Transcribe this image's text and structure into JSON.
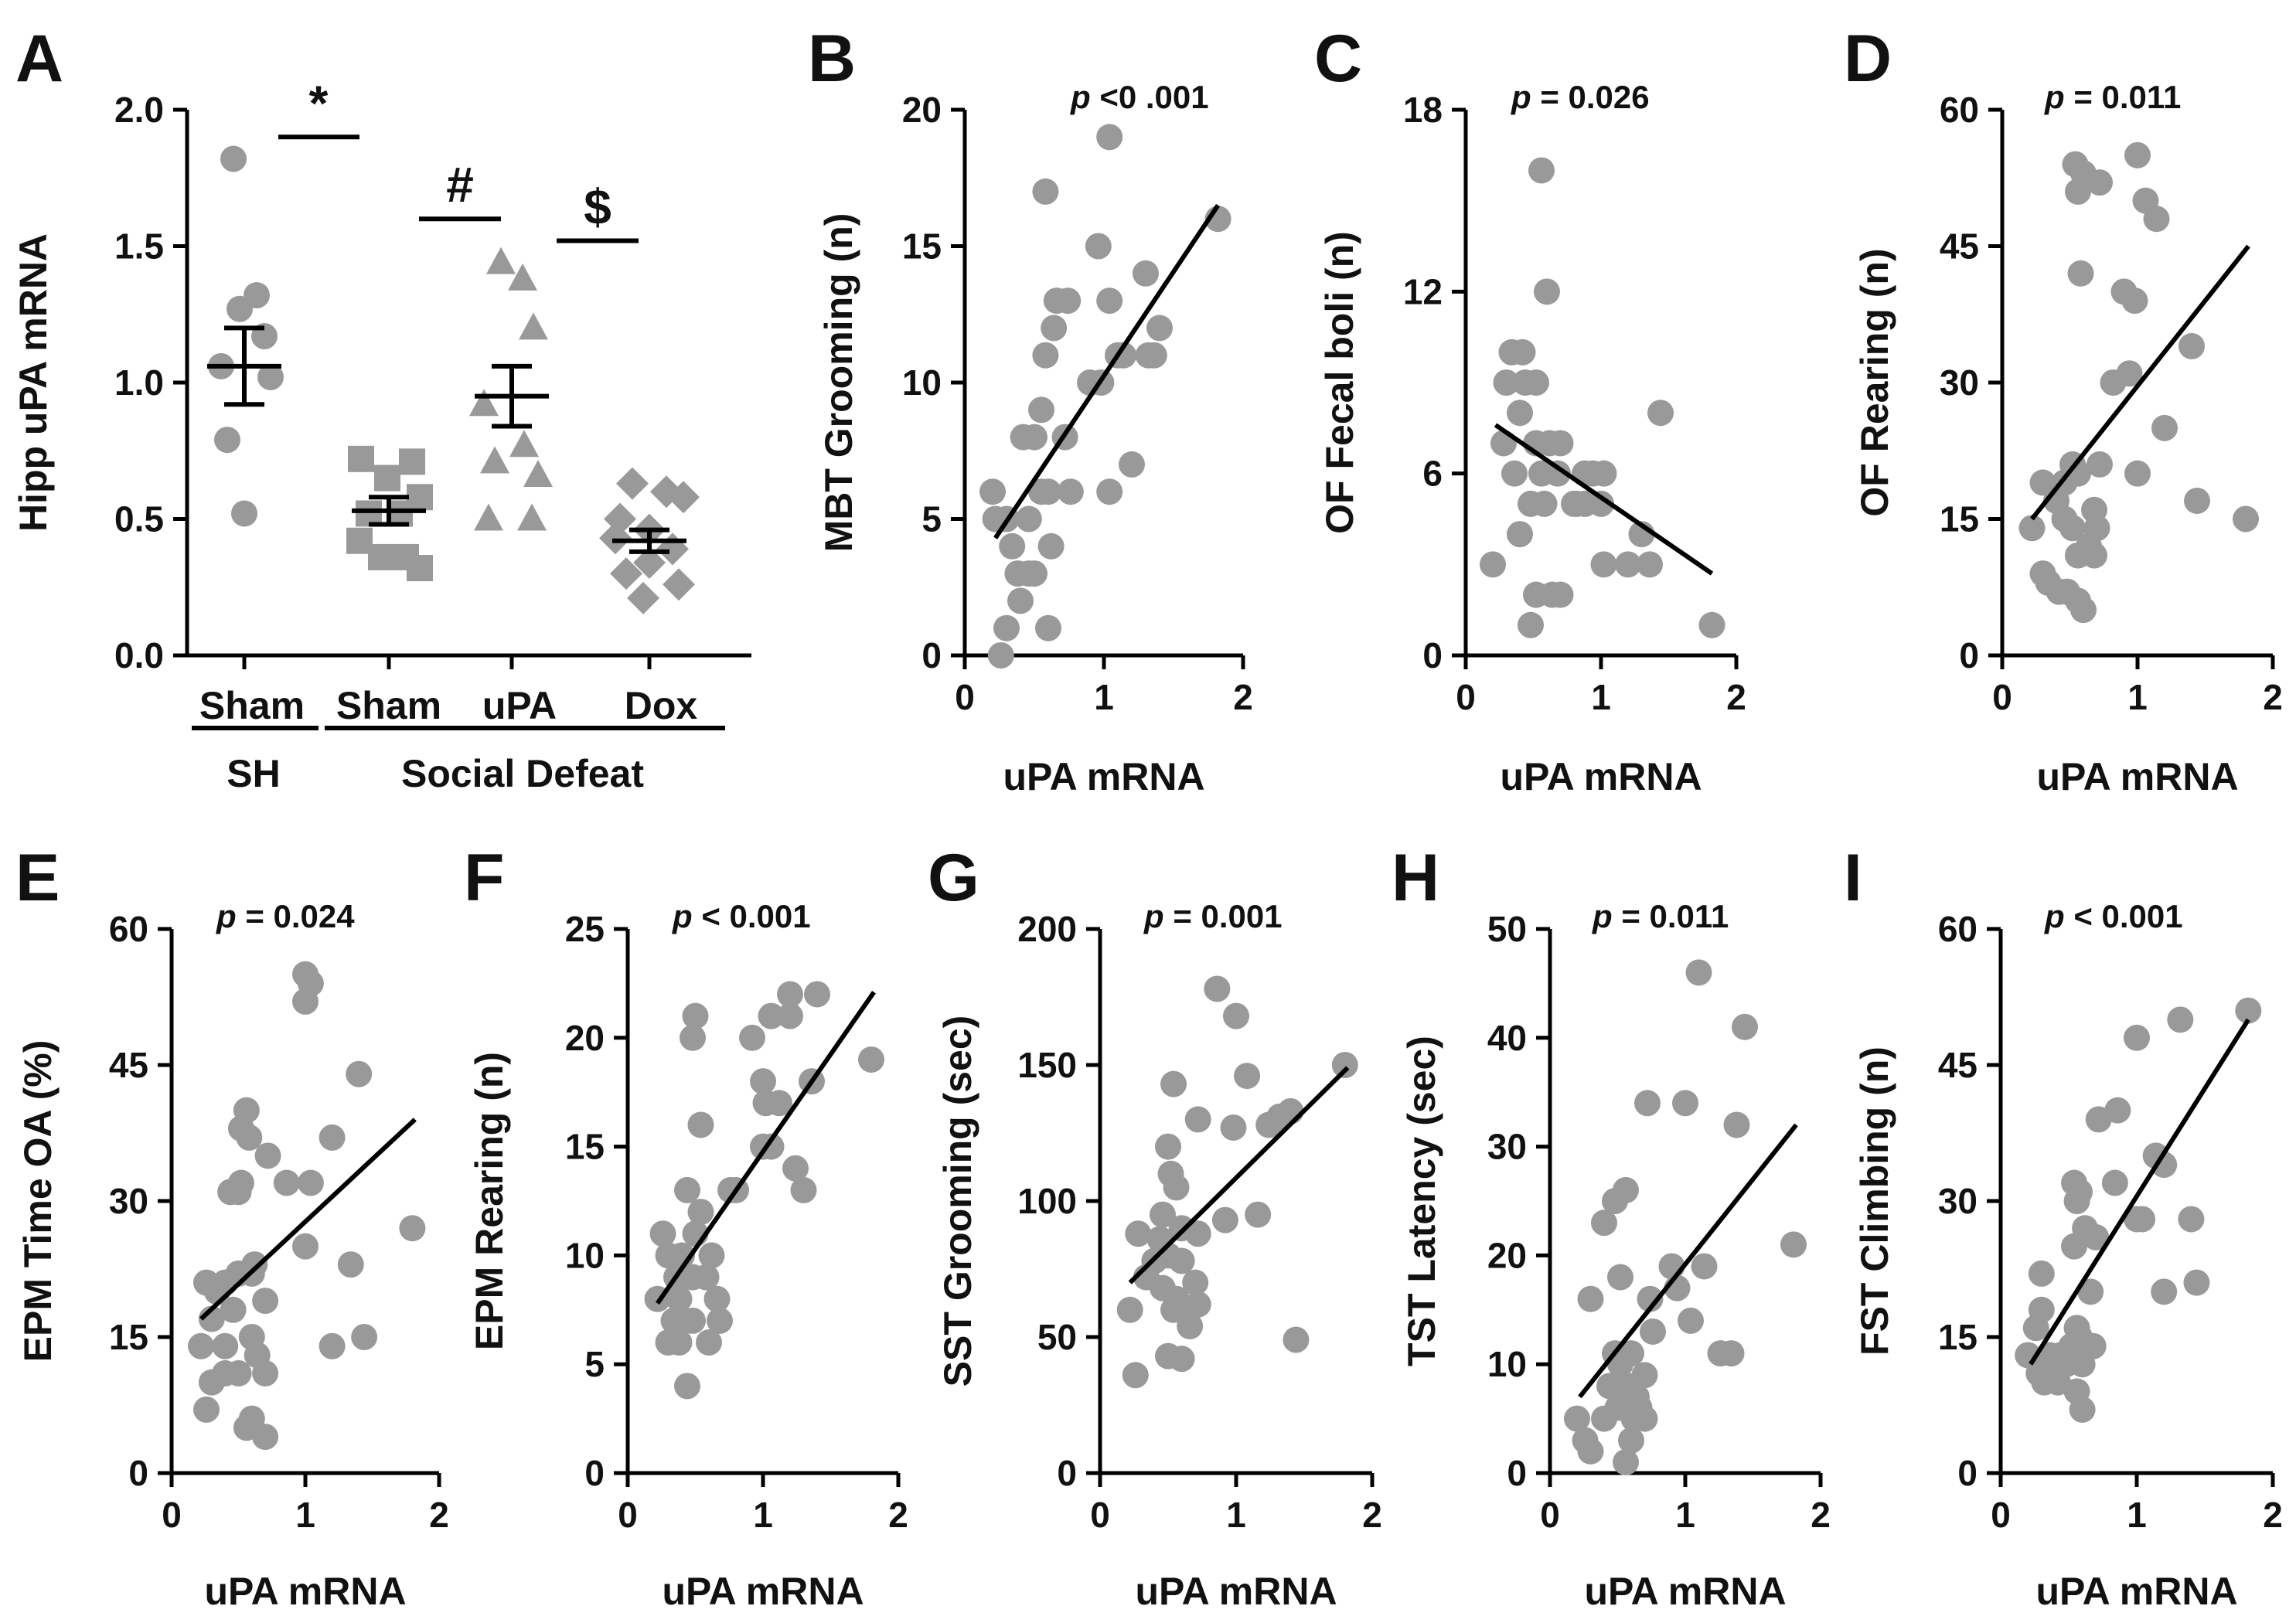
{
  "figure": {
    "pointColor": "#999999",
    "lineColor": "#000000",
    "textColor": "#111111"
  },
  "chart_data": [
    {
      "id": "A",
      "letter": "A",
      "type": "scatter",
      "ylabel": "Hipp uPA mRNA",
      "ylim": [
        0,
        2.0
      ],
      "yticks": [
        0.0,
        0.5,
        1.0,
        1.5,
        2.0
      ],
      "ytick_labels": [
        "0.0",
        "0.5",
        "1.0",
        "1.5",
        "2.0"
      ],
      "categories": [
        "Sham",
        "Sham",
        "uPA",
        "Dox"
      ],
      "group_labels": [
        {
          "label": "SH",
          "from": 0,
          "to": 0
        },
        {
          "label": "Social Defeat",
          "from": 1,
          "to": 3
        }
      ],
      "series": [
        {
          "name": "Sham",
          "group": "SH",
          "marker": "circle",
          "values": [
            1.82,
            1.32,
            1.27,
            1.17,
            1.06,
            1.02,
            0.79,
            0.52
          ],
          "mean": 1.06,
          "sem": 0.14
        },
        {
          "name": "Sham",
          "group": "Social Defeat",
          "marker": "square",
          "values": [
            0.72,
            0.71,
            0.65,
            0.58,
            0.52,
            0.52,
            0.42,
            0.36,
            0.36,
            0.32
          ],
          "mean": 0.53,
          "sem": 0.05
        },
        {
          "name": "uPA",
          "group": "Social Defeat",
          "marker": "triangle",
          "values": [
            1.44,
            1.38,
            1.2,
            0.92,
            0.77,
            0.71,
            0.66,
            0.5,
            0.5
          ],
          "mean": 0.95,
          "sem": 0.11
        },
        {
          "name": "Dox",
          "group": "Social Defeat",
          "marker": "diamond",
          "values": [
            0.63,
            0.6,
            0.58,
            0.5,
            0.46,
            0.43,
            0.39,
            0.34,
            0.3,
            0.26,
            0.21
          ],
          "mean": 0.42,
          "sem": 0.04
        }
      ],
      "significance": [
        {
          "symbol": "*",
          "between": [
            0,
            1
          ],
          "y": 1.9
        },
        {
          "symbol": "#",
          "between": [
            1,
            2
          ],
          "y": 1.6
        },
        {
          "symbol": "$",
          "between": [
            2,
            3
          ],
          "y": 1.52
        }
      ]
    },
    {
      "id": "B",
      "letter": "B",
      "type": "scatter",
      "xlabel": "uPA mRNA",
      "ylabel": "MBT Grooming (n)",
      "p_prefix": "p",
      "p_text": " <0 .001",
      "xlim": [
        0,
        2
      ],
      "xticks": [
        0,
        1,
        2
      ],
      "ylim": [
        0,
        20
      ],
      "yticks": [
        0,
        5,
        10,
        15,
        20
      ],
      "regression": {
        "x1": 0.22,
        "y1": 4.3,
        "x2": 1.82,
        "y2": 16.5
      },
      "x": [
        1.04,
        0.58,
        1.82,
        0.96,
        1.04,
        1.3,
        1.4,
        0.74,
        0.66,
        0.64,
        1.14,
        1.32,
        0.9,
        0.98,
        0.58,
        1.1,
        1.36,
        0.5,
        0.42,
        0.55,
        0.72,
        1.2,
        0.76,
        1.04,
        0.2,
        0.3,
        0.46,
        0.55,
        0.6,
        0.34,
        0.5,
        0.62,
        0.22,
        0.38,
        0.46,
        0.6,
        0.4,
        0.3,
        0.26
      ],
      "y": [
        19,
        17,
        16,
        15,
        13,
        14,
        12,
        13,
        13,
        12,
        11,
        11,
        10,
        10,
        11,
        11,
        11,
        8,
        8,
        9,
        8,
        7,
        6,
        6,
        6,
        5,
        5,
        6,
        6,
        4,
        3,
        4,
        5,
        3,
        3,
        1,
        2,
        1,
        0
      ]
    },
    {
      "id": "C",
      "letter": "C",
      "type": "scatter",
      "xlabel": "uPA mRNA",
      "ylabel": "OF Fecal boli (n)",
      "p_prefix": "p",
      "p_text": " = 0.026",
      "xlim": [
        0,
        2
      ],
      "xticks": [
        0,
        1,
        2
      ],
      "ylim": [
        0,
        18
      ],
      "yticks": [
        0,
        6,
        12,
        18
      ],
      "regression": {
        "x1": 0.22,
        "y1": 7.6,
        "x2": 1.82,
        "y2": 2.7
      },
      "x": [
        0.56,
        0.6,
        0.34,
        0.42,
        0.3,
        0.44,
        0.52,
        0.4,
        1.44,
        0.28,
        0.52,
        0.62,
        0.7,
        0.36,
        0.56,
        0.88,
        0.94,
        1.02,
        0.68,
        0.8,
        0.88,
        1.0,
        0.48,
        0.58,
        0.82,
        0.4,
        1.3,
        0.2,
        1.02,
        1.2,
        1.36,
        0.52,
        0.64,
        0.7,
        1.82,
        0.48
      ],
      "y": [
        16,
        12,
        10,
        10,
        9,
        9,
        9,
        8,
        8,
        7,
        7,
        7,
        7,
        6,
        6,
        6,
        6,
        6,
        6,
        5,
        5,
        5,
        5,
        5,
        5,
        4,
        4,
        3,
        3,
        3,
        3,
        2,
        2,
        2,
        1,
        1
      ]
    },
    {
      "id": "D",
      "letter": "D",
      "type": "scatter",
      "xlabel": "uPA mRNA",
      "ylabel": "OF Rearing (n)",
      "p_prefix": "p",
      "p_text": " = 0.011",
      "xlim": [
        0,
        2
      ],
      "xticks": [
        0,
        1,
        2
      ],
      "ylim": [
        0,
        60
      ],
      "yticks": [
        0,
        15,
        30,
        45,
        60
      ],
      "regression": {
        "x1": 0.22,
        "y1": 15,
        "x2": 1.82,
        "y2": 45
      },
      "x": [
        1.0,
        0.54,
        0.72,
        0.56,
        0.6,
        1.06,
        0.9,
        0.98,
        1.14,
        0.58,
        0.94,
        1.4,
        0.82,
        1.2,
        0.72,
        0.52,
        0.46,
        0.56,
        0.68,
        1.0,
        0.3,
        0.4,
        1.44,
        0.22,
        0.46,
        0.52,
        0.7,
        0.64,
        0.56,
        1.8,
        0.3,
        0.68,
        0.34,
        0.42,
        0.48,
        0.56,
        0.6
      ],
      "y": [
        55,
        54,
        52,
        51,
        53,
        50,
        40,
        39,
        48,
        42,
        31,
        34,
        30,
        25,
        21,
        21,
        19,
        20,
        16,
        20,
        19,
        17,
        17,
        14,
        15,
        14,
        14,
        12,
        11,
        15,
        9,
        11,
        8,
        7,
        7,
        6,
        5
      ]
    },
    {
      "id": "E",
      "letter": "E",
      "type": "scatter",
      "xlabel": "uPA mRNA",
      "ylabel": "EPM Time OA (%)",
      "p_prefix": "p",
      "p_text": " = 0.024",
      "xlim": [
        0,
        2
      ],
      "xticks": [
        0,
        1,
        2
      ],
      "ylim": [
        0,
        60
      ],
      "yticks": [
        0,
        15,
        30,
        45,
        60
      ],
      "regression": {
        "x1": 0.22,
        "y1": 17,
        "x2": 1.82,
        "y2": 39
      },
      "x": [
        1.0,
        1.04,
        1.0,
        1.4,
        0.56,
        0.52,
        0.58,
        1.2,
        0.72,
        0.86,
        1.04,
        0.44,
        0.52,
        0.5,
        1.8,
        1.0,
        0.62,
        0.6,
        0.5,
        0.4,
        1.34,
        0.7,
        0.26,
        0.34,
        0.3,
        0.46,
        1.2,
        1.44,
        0.6,
        0.22,
        0.4,
        0.5,
        0.64,
        0.7,
        0.3,
        0.4,
        0.26,
        0.6,
        0.7,
        0.56
      ],
      "y": [
        55,
        54,
        52,
        44,
        40,
        38,
        37,
        37,
        35,
        32,
        32,
        31,
        32,
        31,
        27,
        25,
        23,
        22,
        22,
        21,
        23,
        19,
        21,
        20,
        17,
        18,
        14,
        15,
        15,
        14,
        14,
        11,
        13,
        11,
        10,
        11,
        7,
        6,
        4,
        5
      ]
    },
    {
      "id": "F",
      "letter": "F",
      "type": "scatter",
      "xlabel": "uPA mRNA",
      "ylabel": "EPM Rearing (n)",
      "p_prefix": "p",
      "p_text": " < 0.001",
      "xlim": [
        0,
        2
      ],
      "xticks": [
        0,
        1,
        2
      ],
      "ylim": [
        0,
        25
      ],
      "yticks": [
        0,
        5,
        10,
        15,
        20,
        25
      ],
      "regression": {
        "x1": 0.22,
        "y1": 7.8,
        "x2": 1.82,
        "y2": 22.1
      },
      "x": [
        1.2,
        1.4,
        1.06,
        1.2,
        0.5,
        0.92,
        0.48,
        1.8,
        1.0,
        1.02,
        1.12,
        1.36,
        1.06,
        0.54,
        1.0,
        1.24,
        0.8,
        0.76,
        1.3,
        0.44,
        0.54,
        0.26,
        0.5,
        0.62,
        0.3,
        0.4,
        0.22,
        0.36,
        0.48,
        0.58,
        0.38,
        0.66,
        0.68,
        0.42,
        0.34,
        0.48,
        0.3,
        0.38,
        0.6,
        0.44
      ],
      "y": [
        22,
        22,
        21,
        21,
        21,
        20,
        20,
        19,
        18,
        17,
        17,
        18,
        15,
        16,
        15,
        14,
        13,
        13,
        13,
        13,
        12,
        11,
        11,
        10,
        10,
        10,
        8,
        9,
        9,
        9,
        8,
        8,
        7,
        7,
        7,
        7,
        6,
        6,
        6,
        4
      ]
    },
    {
      "id": "G",
      "letter": "G",
      "type": "scatter",
      "xlabel": "uPA mRNA",
      "ylabel": "SST Grooming (sec)",
      "p_prefix": "p",
      "p_text": " = 0.001",
      "xlim": [
        0,
        2
      ],
      "xticks": [
        0,
        1,
        2
      ],
      "ylim": [
        0,
        200
      ],
      "yticks": [
        0,
        50,
        100,
        150,
        200
      ],
      "regression": {
        "x1": 0.22,
        "y1": 70,
        "x2": 1.82,
        "y2": 149
      },
      "x": [
        0.86,
        1.0,
        1.8,
        1.08,
        0.54,
        1.4,
        1.32,
        1.24,
        0.98,
        0.72,
        0.5,
        0.52,
        0.56,
        0.46,
        0.92,
        1.16,
        0.6,
        0.28,
        0.44,
        0.72,
        0.5,
        0.4,
        0.7,
        0.34,
        0.6,
        0.46,
        0.56,
        0.72,
        0.64,
        0.54,
        0.22,
        0.66,
        1.44,
        0.5,
        0.6,
        0.26
      ],
      "y": [
        178,
        168,
        150,
        146,
        143,
        133,
        131,
        128,
        127,
        130,
        120,
        110,
        105,
        95,
        93,
        95,
        90,
        88,
        86,
        88,
        80,
        78,
        70,
        72,
        78,
        68,
        64,
        62,
        60,
        60,
        60,
        54,
        49,
        43,
        42,
        36
      ]
    },
    {
      "id": "H",
      "letter": "H",
      "type": "scatter",
      "xlabel": "uPA mRNA",
      "ylabel": "TST Latency (sec)",
      "p_prefix": "p",
      "p_text": " = 0.011",
      "xlim": [
        0,
        2
      ],
      "xticks": [
        0,
        1,
        2
      ],
      "ylim": [
        0,
        50
      ],
      "yticks": [
        0,
        10,
        20,
        30,
        40,
        50
      ],
      "regression": {
        "x1": 0.22,
        "y1": 7,
        "x2": 1.82,
        "y2": 32
      },
      "x": [
        1.1,
        1.44,
        1.0,
        0.72,
        1.38,
        0.56,
        0.48,
        0.4,
        0.52,
        1.8,
        0.9,
        1.14,
        0.94,
        0.74,
        1.04,
        0.3,
        0.76,
        1.26,
        1.34,
        0.6,
        0.48,
        0.52,
        0.7,
        0.44,
        0.58,
        0.64,
        0.66,
        0.2,
        0.4,
        0.5,
        0.56,
        0.62,
        0.7,
        0.26,
        0.3,
        0.6,
        0.56
      ],
      "y": [
        46,
        41,
        34,
        34,
        32,
        26,
        25,
        23,
        18,
        21,
        19,
        19,
        17,
        16,
        14,
        16,
        13,
        11,
        11,
        11,
        11,
        10,
        9,
        8,
        8,
        7,
        6,
        5,
        5,
        6,
        6,
        5,
        5,
        3,
        2,
        3,
        1
      ]
    },
    {
      "id": "I",
      "letter": "I",
      "type": "scatter",
      "xlabel": "uPA mRNA",
      "ylabel": "FST Climbing (n)",
      "p_prefix": "p",
      "p_text": " < 0.001",
      "xlim": [
        0,
        2
      ],
      "xticks": [
        0,
        1,
        2
      ],
      "ylim": [
        0,
        60
      ],
      "yticks": [
        0,
        15,
        30,
        45,
        60
      ],
      "regression": {
        "x1": 0.22,
        "y1": 12,
        "x2": 1.82,
        "y2": 50
      },
      "x": [
        1.82,
        1.32,
        1.0,
        0.86,
        1.14,
        0.72,
        1.2,
        0.54,
        1.0,
        0.58,
        0.56,
        0.62,
        0.84,
        1.04,
        1.4,
        1.2,
        0.66,
        1.44,
        0.7,
        0.54,
        0.3,
        0.56,
        0.3,
        0.58,
        0.68,
        0.26,
        0.52,
        0.44,
        0.36,
        0.48,
        0.6,
        0.4,
        0.28,
        0.32,
        0.42,
        0.56,
        0.2,
        0.6
      ],
      "y": [
        51,
        50,
        48,
        40,
        35,
        39,
        34,
        32,
        28,
        31,
        30,
        27,
        32,
        28,
        28,
        20,
        20,
        21,
        26,
        25,
        22,
        16,
        18,
        15,
        14,
        16,
        14,
        13,
        13,
        12,
        12,
        11,
        11,
        10,
        10,
        9,
        13,
        7
      ]
    }
  ]
}
